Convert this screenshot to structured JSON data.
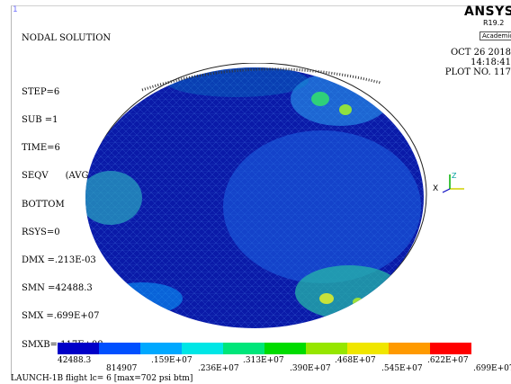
{
  "window": {
    "number": "1"
  },
  "header": {
    "title": "NODAL SOLUTION",
    "lines": [
      "STEP=6",
      "SUB =1",
      "TIME=6",
      "SEQV      (AVG)",
      "BOTTOM",
      "RSYS=0",
      "DMX =.213E-03",
      "SMN =42488.3",
      "SMX =.699E+07",
      "SMXB=.117E+08"
    ]
  },
  "brand": {
    "name": "ANSYS",
    "release": "R19.2",
    "license": "Academic"
  },
  "plot_info": {
    "date": "OCT 26 2018",
    "time": "14:18:41",
    "plot_no": "PLOT NO. 117"
  },
  "triad": {
    "x_label": "X",
    "z_label": "Z"
  },
  "legend": {
    "colors": [
      "#0000c8",
      "#0050ff",
      "#00a8ff",
      "#00e6e6",
      "#00e67a",
      "#00dc00",
      "#96e600",
      "#f0e600",
      "#ff9a00",
      "#ff0000"
    ],
    "labels_low": [
      "42488.3",
      ".159E+07",
      ".313E+07",
      ".468E+07",
      ".622E+07"
    ],
    "labels_high": [
      "814907",
      ".236E+07",
      ".390E+07",
      ".545E+07",
      ".699E+07"
    ]
  },
  "caption": "LAUNCH-1B flight lc= 6 [max=702 psi btm]"
}
